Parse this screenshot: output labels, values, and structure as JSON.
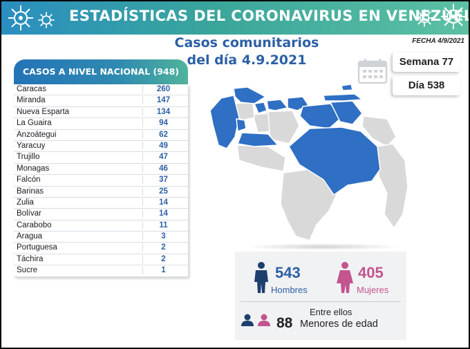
{
  "banner": {
    "title": "ESTADÍSTICAS DEL CORONAVIRUS EN VENEZUELA",
    "icon": "virus-icon"
  },
  "heading": {
    "line1": "Casos comunitarios",
    "line2": "del día 4.9.2021"
  },
  "fecha": "FECHA 4/9/2021",
  "week": "Semana 77",
  "day": "Día 538",
  "table": {
    "header": "CASOS A NIVEL NACIONAL (948)",
    "rows": [
      {
        "name": "Caracas",
        "value": "260"
      },
      {
        "name": "Miranda",
        "value": "147"
      },
      {
        "name": "Nueva Esparta",
        "value": "134"
      },
      {
        "name": "La Guaira",
        "value": "94"
      },
      {
        "name": "Anzoátegui",
        "value": "62"
      },
      {
        "name": "Yaracuy",
        "value": "49"
      },
      {
        "name": "Trujillo",
        "value": "47"
      },
      {
        "name": "Monagas",
        "value": "46"
      },
      {
        "name": "Falcón",
        "value": "37"
      },
      {
        "name": "Barinas",
        "value": "25"
      },
      {
        "name": "Zulia",
        "value": "14"
      },
      {
        "name": "Bolívar",
        "value": "14"
      },
      {
        "name": "Carabobo",
        "value": "11"
      },
      {
        "name": "Aragua",
        "value": "3"
      },
      {
        "name": "Portuguesa",
        "value": "2"
      },
      {
        "name": "Táchira",
        "value": "2"
      },
      {
        "name": "Sucre",
        "value": "1"
      }
    ]
  },
  "stats": {
    "men_count": "543",
    "men_label": "Hombres",
    "women_count": "405",
    "women_label": "Mujeres",
    "among_label": "Entre ellos",
    "minors_count": "88",
    "minors_label": "Menores de edad"
  },
  "colors": {
    "accent_blue": "#2b5fa5",
    "map_highlight": "#2f6fc4",
    "map_gray": "#d9d9d9",
    "women_pink": "#c2548f"
  }
}
